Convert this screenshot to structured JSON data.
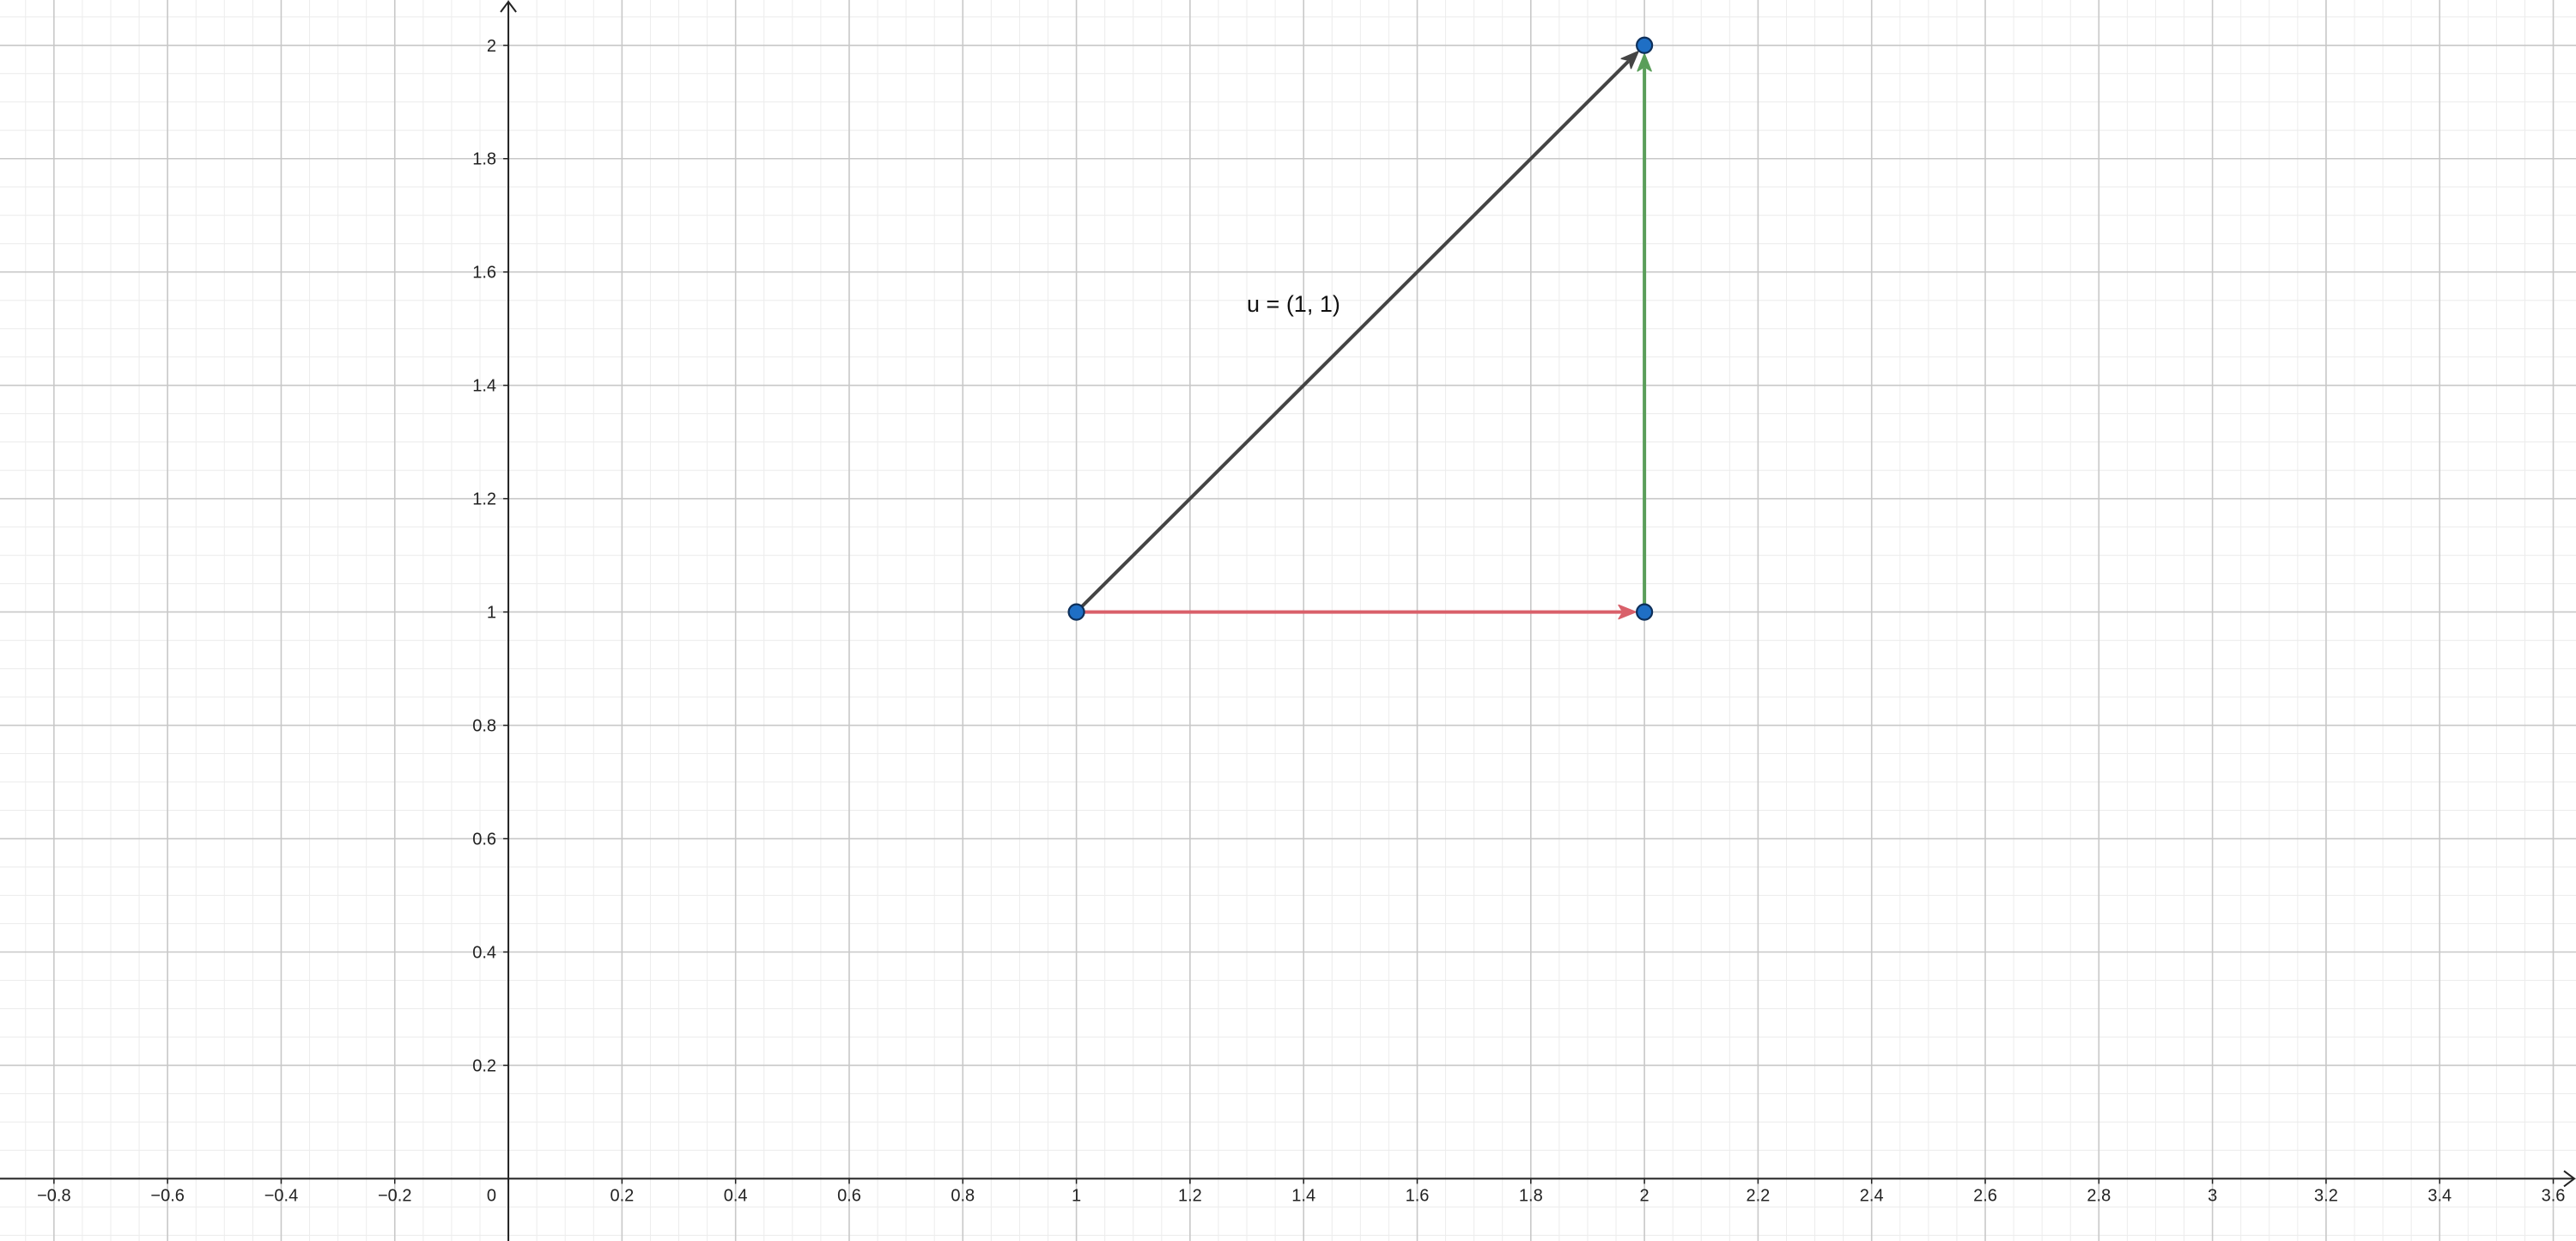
{
  "chart_data": {
    "type": "scatter",
    "title": "",
    "xlabel": "",
    "ylabel": "",
    "xlim": [
      -0.895,
      3.64
    ],
    "ylim": [
      -0.11,
      2.08
    ],
    "grid": true,
    "x_ticks": [
      -0.8,
      -0.6,
      -0.4,
      -0.2,
      0,
      0.2,
      0.4,
      0.6,
      0.8,
      1,
      1.2,
      1.4,
      1.6,
      1.8,
      2,
      2.2,
      2.4,
      2.6,
      2.8,
      3,
      3.2,
      3.4,
      3.6
    ],
    "x_tick_labels": [
      "−0.8",
      "−0.6",
      "−0.4",
      "−0.2",
      "0",
      "0.2",
      "0.4",
      "0.6",
      "0.8",
      "1",
      "1.2",
      "1.4",
      "1.6",
      "1.8",
      "2",
      "2.2",
      "2.4",
      "2.6",
      "2.8",
      "3",
      "3.2",
      "3.4",
      "3.6"
    ],
    "y_ticks": [
      0.2,
      0.4,
      0.6,
      0.8,
      1,
      1.2,
      1.4,
      1.6,
      1.8,
      2
    ],
    "y_tick_labels": [
      "0.2",
      "0.4",
      "0.6",
      "0.8",
      "1",
      "1.2",
      "1.4",
      "1.6",
      "1.8",
      "2"
    ],
    "points": [
      {
        "x": 1,
        "y": 1
      },
      {
        "x": 2,
        "y": 1
      },
      {
        "x": 2,
        "y": 2
      }
    ],
    "vectors": [
      {
        "from": [
          1,
          1
        ],
        "to": [
          2,
          2
        ],
        "color": "#444444"
      },
      {
        "from": [
          1,
          1
        ],
        "to": [
          2,
          1
        ],
        "color": "#d9606a"
      },
      {
        "from": [
          2,
          1
        ],
        "to": [
          2,
          2
        ],
        "color": "#5a9e5a"
      }
    ],
    "annotations": [
      {
        "text": "u = (1, 1)",
        "x": 1.3,
        "y": 1.53
      }
    ],
    "colors": {
      "point_fill": "#1f6fc5",
      "point_stroke": "#0d2f5a",
      "major_grid": "#c8c8c8",
      "minor_grid": "#ececec",
      "axis": "#222222"
    }
  }
}
